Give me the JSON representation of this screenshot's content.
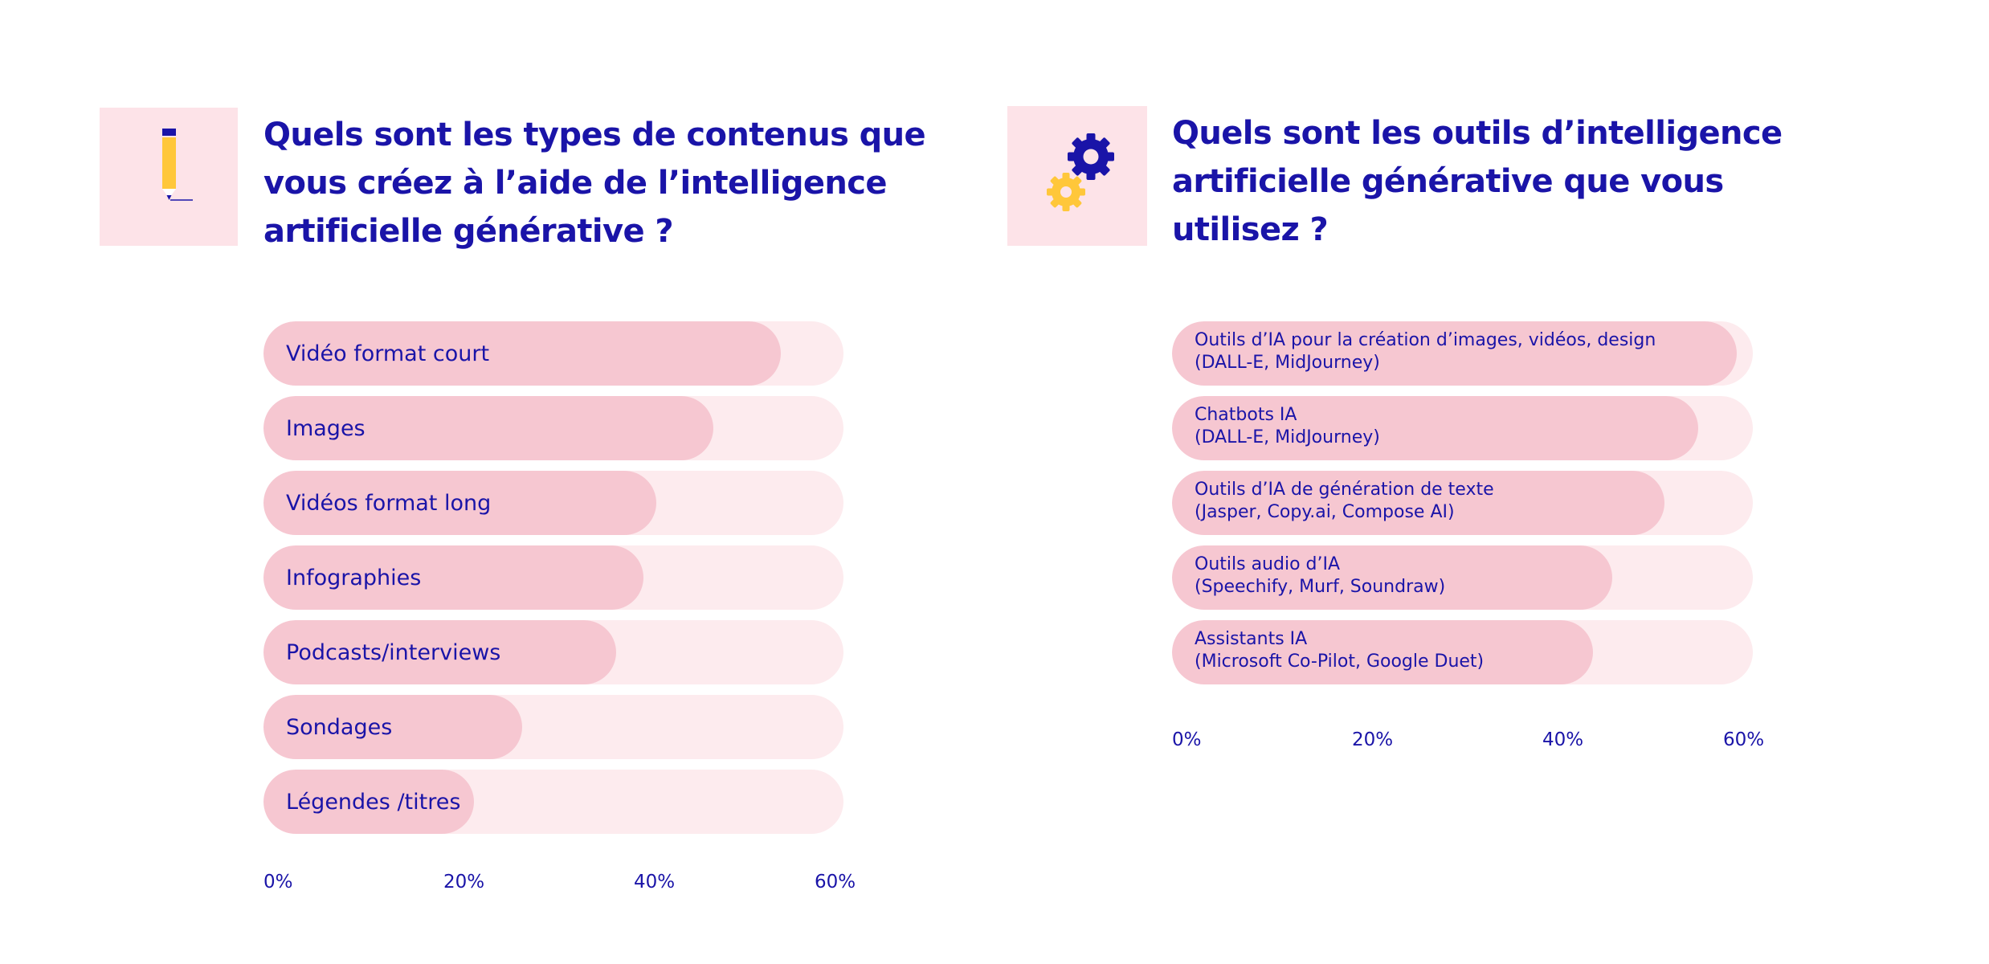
{
  "colors": {
    "title": "#1a14a8",
    "bar_fill": "#f6c7d1",
    "bar_track": "#fdebee",
    "icon_bg": "#fde3e8",
    "pencil_yellow": "#ffc73a",
    "gear_blue": "#1a14a8",
    "gear_yellow": "#ffc73a"
  },
  "left": {
    "icon": "pencil-icon",
    "title": "Quels sont les types de contenus que\nvous créez à l’aide de l’intelligence\nartificielle générative ?"
  },
  "right": {
    "icon": "gears-icon",
    "title": "Quels sont les outils d’intelligence\nartificielle générative que vous\nutilisez ?"
  },
  "chart_data": [
    {
      "type": "bar",
      "orientation": "horizontal",
      "title": "Quels sont les types de contenus que vous créez à l’aide de l’intelligence artificielle générative ?",
      "categories": [
        "Vidéo format court",
        "Images",
        "Vidéos format long",
        "Infographies",
        "Podcasts/interviews",
        "Sondages",
        "Légendes /titres"
      ],
      "values": [
        54,
        47,
        41,
        39.7,
        36.8,
        27,
        22
      ],
      "xlim": [
        0,
        60
      ],
      "ticks": [
        "0%",
        "20%",
        "40%",
        "60%"
      ],
      "grid": false
    },
    {
      "type": "bar",
      "orientation": "horizontal",
      "title": "Quels sont les outils d’intelligence artificielle générative que vous utilisez ?",
      "categories": [
        {
          "name": "Outils d’IA pour la création d’images, vidéos, design",
          "detail": "(DALL-E, MidJourney)"
        },
        {
          "name": "Chatbots IA",
          "detail": "(DALL-E, MidJourney)"
        },
        {
          "name": "Outils d’IA de génération de texte",
          "detail": "(Jasper, Copy.ai, Compose AI)"
        },
        {
          "name": "Outils audio d’IA",
          "detail": "(Speechify, Murf, Soundraw)"
        },
        {
          "name": "Assistants IA",
          "detail": "(Microsoft Co-Pilot, Google Duet)"
        }
      ],
      "values": [
        59,
        55,
        51.4,
        46,
        44
      ],
      "xlim": [
        0,
        60
      ],
      "ticks": [
        "0%",
        "20%",
        "40%",
        "60%"
      ],
      "grid": false
    }
  ]
}
